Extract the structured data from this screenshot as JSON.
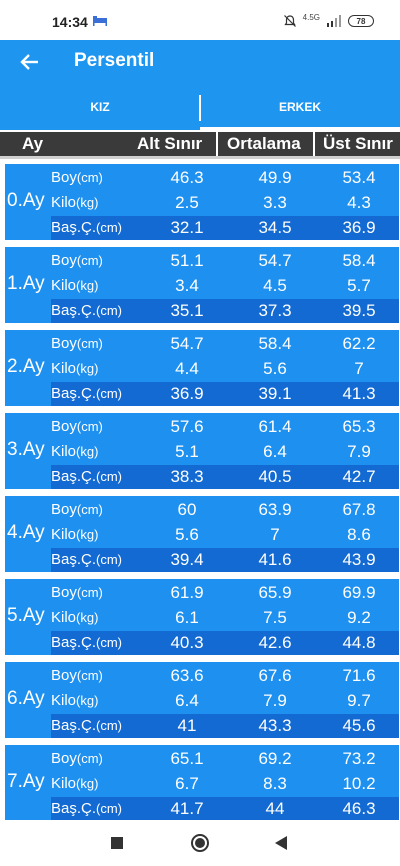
{
  "status": {
    "time": "14:34",
    "network": "4.5G",
    "battery": "78"
  },
  "appbar": {
    "title": "Persentil"
  },
  "tabs": [
    {
      "label": "KIZ"
    },
    {
      "label": "ERKEK"
    }
  ],
  "table": {
    "headers": {
      "month": "Ay",
      "lower": "Alt Sınır",
      "mean": "Ortalama",
      "upper": "Üst Sınır"
    },
    "row_labels": [
      {
        "name": "Boy",
        "unit": "(cm)"
      },
      {
        "name": "Kilo",
        "unit": "(kg)"
      },
      {
        "name": "Baş.Ç.",
        "unit": "(cm)"
      }
    ],
    "blocks": [
      {
        "month": "0.Ay",
        "rows": [
          [
            "46.3",
            "49.9",
            "53.4"
          ],
          [
            "2.5",
            "3.3",
            "4.3"
          ],
          [
            "32.1",
            "34.5",
            "36.9"
          ]
        ]
      },
      {
        "month": "1.Ay",
        "rows": [
          [
            "51.1",
            "54.7",
            "58.4"
          ],
          [
            "3.4",
            "4.5",
            "5.7"
          ],
          [
            "35.1",
            "37.3",
            "39.5"
          ]
        ]
      },
      {
        "month": "2.Ay",
        "rows": [
          [
            "54.7",
            "58.4",
            "62.2"
          ],
          [
            "4.4",
            "5.6",
            "7"
          ],
          [
            "36.9",
            "39.1",
            "41.3"
          ]
        ]
      },
      {
        "month": "3.Ay",
        "rows": [
          [
            "57.6",
            "61.4",
            "65.3"
          ],
          [
            "5.1",
            "6.4",
            "7.9"
          ],
          [
            "38.3",
            "40.5",
            "42.7"
          ]
        ]
      },
      {
        "month": "4.Ay",
        "rows": [
          [
            "60",
            "63.9",
            "67.8"
          ],
          [
            "5.6",
            "7",
            "8.6"
          ],
          [
            "39.4",
            "41.6",
            "43.9"
          ]
        ]
      },
      {
        "month": "5.Ay",
        "rows": [
          [
            "61.9",
            "65.9",
            "69.9"
          ],
          [
            "6.1",
            "7.5",
            "9.2"
          ],
          [
            "40.3",
            "42.6",
            "44.8"
          ]
        ]
      },
      {
        "month": "6.Ay",
        "rows": [
          [
            "63.6",
            "67.6",
            "71.6"
          ],
          [
            "6.4",
            "7.9",
            "9.7"
          ],
          [
            "41",
            "43.3",
            "45.6"
          ]
        ]
      },
      {
        "month": "7.Ay",
        "rows": [
          [
            "65.1",
            "69.2",
            "73.2"
          ],
          [
            "6.7",
            "8.3",
            "10.2"
          ],
          [
            "41.7",
            "44",
            "46.3"
          ]
        ]
      }
    ]
  },
  "colors": {
    "primary": "#1e96f0",
    "block": "#1e90f0",
    "block_dark": "#136ad2",
    "header": "#3a3a3a"
  },
  "icons": {
    "back": "arrow-left-icon",
    "nav_square": "recent-apps-icon",
    "nav_circle": "home-icon",
    "nav_triangle": "back-triangle-icon"
  }
}
